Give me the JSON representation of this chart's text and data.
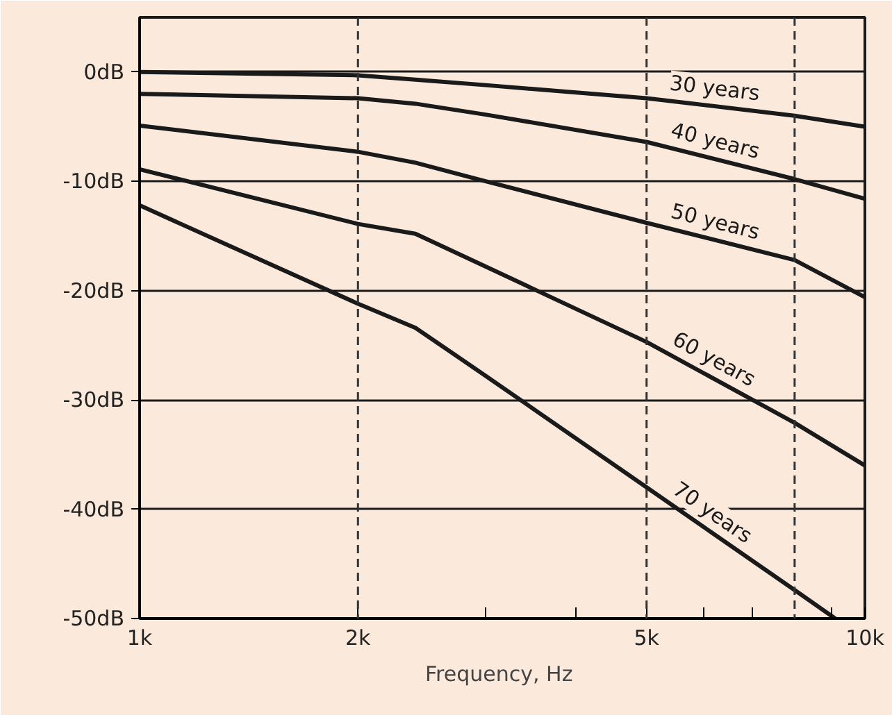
{
  "chart_data": {
    "type": "line",
    "xlabel": "Frequency,  Hz",
    "log": "x",
    "grid": "y",
    "line_style": "solid",
    "marker": "none",
    "x": [
      1000,
      2000,
      2400,
      3000,
      5000,
      8000,
      10000
    ],
    "xlim": [
      1000,
      10000
    ],
    "xticks": [
      {
        "value": 1000,
        "label": "1k"
      },
      {
        "value": 2000,
        "label": "2k"
      },
      {
        "value": 3000,
        "label": null
      },
      {
        "value": 4000,
        "label": null
      },
      {
        "value": 5000,
        "label": "5k"
      },
      {
        "value": 6000,
        "label": null
      },
      {
        "value": 7000,
        "label": null
      },
      {
        "value": 9000,
        "label": null
      },
      {
        "value": 10000,
        "label": "10k"
      }
    ],
    "ylim": [
      -50,
      5
    ],
    "yticks": [
      {
        "value": 0,
        "label": "0dB"
      },
      {
        "value": -10,
        "label": "-10dB"
      },
      {
        "value": -20,
        "label": "-20dB"
      },
      {
        "value": -30,
        "label": "-30dB"
      },
      {
        "value": -40,
        "label": "-40dB"
      },
      {
        "value": -50,
        "label": "-50dB"
      }
    ],
    "series": [
      {
        "name": "30 years",
        "color": "#1a1a1a",
        "values": [
          0,
          -0.3,
          -0.7,
          -1.2,
          -2.4,
          -4.0,
          -5.0
        ]
      },
      {
        "name": "40 years",
        "color": "#1a1a1a",
        "values": [
          -2.0,
          -2.4,
          -2.9,
          -3.9,
          -6.4,
          -9.8,
          -11.6
        ]
      },
      {
        "name": "50 years",
        "color": "#1a1a1a",
        "values": [
          -4.9,
          -7.3,
          -8.3,
          -10.0,
          -13.8,
          -17.2,
          -20.6
        ]
      },
      {
        "name": "60 years",
        "color": "#1a1a1a",
        "values": [
          -8.9,
          -13.9,
          -14.8,
          -17.8,
          -24.7,
          -32.1,
          -36
        ]
      },
      {
        "name": "70 years",
        "color": "#1a1a1a",
        "x": [
          1000,
          2000,
          2400,
          3000,
          5000,
          8000,
          9100
        ],
        "values": [
          -12.2,
          -21.2,
          -23.4,
          -27.8,
          -38,
          -47.4,
          -50
        ]
      }
    ],
    "ref_lines": [
      {
        "axis": "x",
        "value": 2000,
        "line_style": "dashed"
      },
      {
        "axis": "x",
        "value": 5000,
        "line_style": "dashed"
      },
      {
        "axis": "x",
        "value": 8000,
        "line_style": "dashed"
      }
    ]
  }
}
